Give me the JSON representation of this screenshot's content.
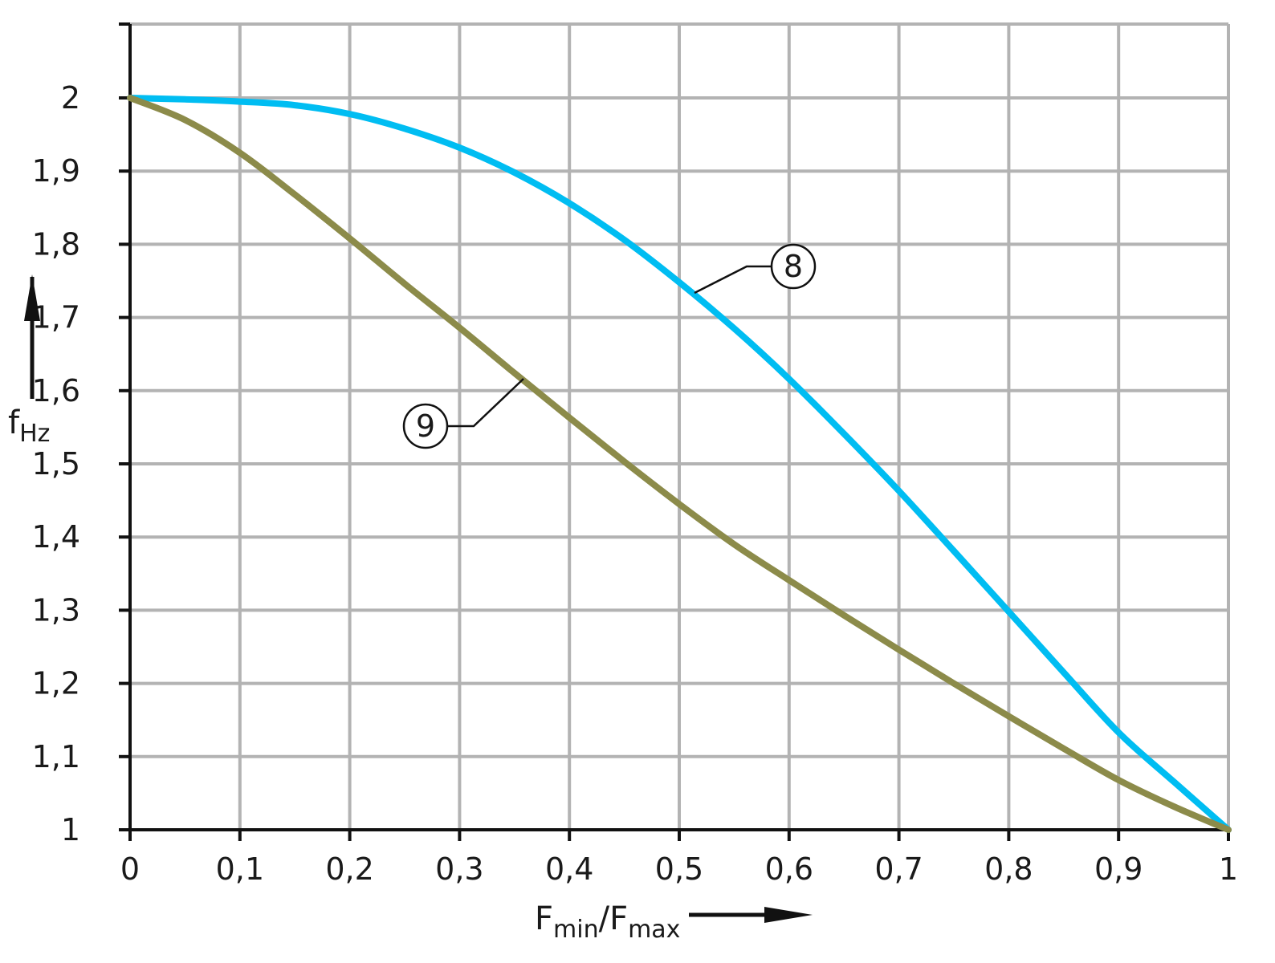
{
  "chart_data": {
    "type": "line",
    "xlabel": {
      "main": "F",
      "sub_min": "min",
      "slash": "/F",
      "sub_max": "max"
    },
    "ylabel": {
      "main": "f",
      "sub": "Hz"
    },
    "xlim": [
      0,
      1
    ],
    "ylim": [
      1,
      2.1
    ],
    "x_ticks": [
      0,
      0.1,
      0.2,
      0.3,
      0.4,
      0.5,
      0.6,
      0.7,
      0.8,
      0.9,
      1
    ],
    "x_tick_labels": [
      "0",
      "0,1",
      "0,2",
      "0,3",
      "0,4",
      "0,5",
      "0,6",
      "0,7",
      "0,8",
      "0,9",
      "1"
    ],
    "y_ticks": [
      1,
      1.1,
      1.2,
      1.3,
      1.4,
      1.5,
      1.6,
      1.7,
      1.8,
      1.9,
      2
    ],
    "y_tick_labels": [
      "1",
      "1,1",
      "1,2",
      "1,3",
      "1,4",
      "1,5",
      "1,6",
      "1,7",
      "1,8",
      "1,9",
      "2"
    ],
    "grid": true,
    "series": [
      {
        "name": "8",
        "color": "#00bdf2",
        "x": [
          0,
          0.05,
          0.1,
          0.15,
          0.2,
          0.25,
          0.3,
          0.35,
          0.4,
          0.45,
          0.5,
          0.55,
          0.6,
          0.65,
          0.7,
          0.75,
          0.8,
          0.85,
          0.9,
          0.95,
          1
        ],
        "y": [
          2.0,
          1.998,
          1.995,
          1.99,
          1.978,
          1.958,
          1.932,
          1.898,
          1.856,
          1.806,
          1.748,
          1.685,
          1.616,
          1.541,
          1.463,
          1.381,
          1.298,
          1.215,
          1.133,
          1.066,
          1.0
        ]
      },
      {
        "name": "9",
        "color": "#8c8b4a",
        "x": [
          0,
          0.05,
          0.1,
          0.15,
          0.2,
          0.25,
          0.3,
          0.35,
          0.4,
          0.45,
          0.5,
          0.55,
          0.6,
          0.65,
          0.7,
          0.75,
          0.8,
          0.85,
          0.9,
          0.95,
          1
        ],
        "y": [
          2.0,
          1.97,
          1.925,
          1.868,
          1.808,
          1.746,
          1.686,
          1.624,
          1.563,
          1.503,
          1.445,
          1.39,
          1.341,
          1.293,
          1.246,
          1.2,
          1.155,
          1.111,
          1.068,
          1.032,
          1.0
        ]
      }
    ],
    "annotations": [
      {
        "label": "8",
        "series": "8",
        "anchor_x": 0.515,
        "anchor_y": 1.74
      },
      {
        "label": "9",
        "series": "9",
        "anchor_x": 0.357,
        "anchor_y": 1.62
      }
    ]
  }
}
